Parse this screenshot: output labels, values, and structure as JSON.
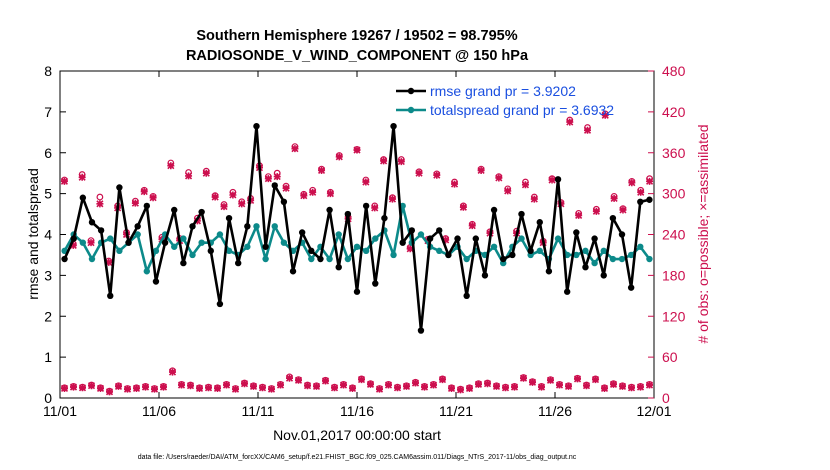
{
  "chart_data": {
    "type": "line",
    "title_line1": "Southern Hemisphere 19267 / 19502 = 98.795%",
    "title_line2": "RADIOSONDE_V_WIND_COMPONENT @ 150 hPa",
    "xlabel": "Nov.01,2017 00:00:00 start",
    "ylabel": "rmse and totalspread",
    "ylabel_right": "# of obs: o=possible; ×=assimilated",
    "x_tick_labels": [
      "11/01",
      "11/06",
      "11/11",
      "11/16",
      "11/21",
      "11/26",
      "12/01"
    ],
    "x_tick_days": [
      0,
      5,
      10,
      15,
      20,
      25,
      30
    ],
    "xlim": [
      0,
      30
    ],
    "ylim": [
      0,
      8
    ],
    "y_ticks": [
      0,
      1,
      2,
      3,
      4,
      5,
      6,
      7,
      8
    ],
    "ylim_right": [
      0,
      480
    ],
    "y_ticks_right": [
      0,
      60,
      120,
      180,
      240,
      300,
      360,
      420,
      480
    ],
    "legend_location": "top-right",
    "footnote": "data file: /Users/raeder/DAI/ATM_forcXX/CAM6_setup/f.e21.FHIST_BGC.f09_025.CAM6assim.011/Diags_NTrS_2017-11/obs_diag_output.nc",
    "colors": {
      "rmse": "#000000",
      "spread": "#0c8a8a",
      "obs": "#cc0f4e"
    },
    "series": [
      {
        "name": "rmse",
        "legend": "rmse grand pr = 3.9202",
        "values": [
          3.4,
          3.9,
          4.9,
          4.3,
          4.1,
          2.5,
          5.15,
          3.8,
          4.2,
          4.7,
          2.85,
          3.8,
          4.6,
          3.3,
          4.2,
          4.55,
          3.6,
          2.3,
          4.4,
          3.3,
          4.2,
          6.65,
          3.7,
          5.2,
          4.8,
          3.1,
          4.05,
          3.6,
          3.4,
          4.6,
          3.2,
          4.5,
          2.6,
          4.7,
          2.8,
          4.4,
          6.65,
          3.8,
          4.1,
          1.65,
          3.9,
          4.1,
          3.5,
          3.9,
          2.5,
          3.9,
          3.0,
          4.6,
          3.4,
          3.5,
          4.5,
          3.6,
          4.3,
          3.1,
          5.35,
          2.6,
          4.05,
          3.2,
          3.9,
          3.0,
          4.4,
          4.0,
          2.7,
          4.8,
          4.85
        ],
        "markers": "filled circles"
      },
      {
        "name": "totalspread",
        "legend": "totalspread grand pr = 3.6932",
        "values": [
          3.6,
          4.0,
          3.8,
          3.4,
          3.8,
          3.9,
          3.6,
          3.8,
          4.0,
          3.1,
          3.6,
          4.0,
          3.7,
          3.9,
          3.5,
          3.8,
          3.8,
          4.0,
          3.6,
          3.5,
          3.7,
          4.2,
          3.4,
          4.2,
          3.8,
          3.6,
          3.8,
          3.4,
          3.7,
          3.4,
          4.0,
          3.4,
          3.7,
          3.6,
          3.9,
          4.1,
          3.5,
          4.7,
          3.8,
          4.0,
          3.7,
          3.6,
          3.5,
          3.7,
          3.4,
          3.6,
          3.5,
          3.7,
          3.3,
          3.7,
          3.9,
          3.5,
          3.6,
          3.4,
          3.9,
          3.5,
          3.5,
          3.6,
          3.3,
          3.6,
          3.4,
          3.4,
          3.5,
          3.7,
          3.4
        ],
        "markers": "filled circles"
      },
      {
        "name": "possible",
        "axis": "right",
        "marker": "o",
        "values": [
          320,
          226,
          328,
          231,
          295,
          201,
          282,
          243,
          289,
          305,
          296,
          236,
          345,
          234,
          331,
          264,
          333,
          297,
          284,
          302,
          288,
          293,
          341,
          325,
          330,
          311,
          369,
          299,
          305,
          336,
          302,
          356,
          265,
          365,
          320,
          282,
          350,
          294,
          350,
          221,
          332,
          233,
          329,
          234,
          317,
          282,
          255,
          336,
          244,
          325,
          307,
          245,
          317,
          295,
          230,
          322,
          287,
          408,
          271,
          397,
          277,
          417,
          296,
          278,
          318,
          305,
          322
        ]
      },
      {
        "name": "assimilated",
        "axis": "right",
        "marker": "x",
        "values": [
          318,
          224,
          324,
          228,
          285,
          199,
          279,
          240,
          286,
          303,
          294,
          233,
          341,
          231,
          326,
          260,
          330,
          295,
          281,
          298,
          285,
          290,
          338,
          322,
          325,
          308,
          366,
          297,
          302,
          334,
          300,
          354,
          263,
          364,
          317,
          279,
          348,
          292,
          347,
          219,
          330,
          231,
          327,
          232,
          314,
          280,
          253,
          334,
          242,
          323,
          304,
          242,
          313,
          292,
          228,
          320,
          285,
          405,
          268,
          393,
          274,
          415,
          293,
          276,
          316,
          302,
          318
        ]
      },
      {
        "name": "possible-low",
        "axis": "right",
        "marker": "o",
        "values": [
          15,
          17,
          16,
          19,
          15,
          10,
          18,
          14,
          15,
          17,
          14,
          17,
          40,
          20,
          19,
          15,
          16,
          15,
          20,
          14,
          22,
          18,
          16,
          14,
          20,
          31,
          27,
          19,
          18,
          26,
          16,
          20,
          15,
          28,
          21,
          14,
          20,
          16,
          18,
          23,
          17,
          20,
          28,
          15,
          13,
          15,
          21,
          22,
          18,
          16,
          17,
          30,
          24,
          17,
          27,
          20,
          18,
          29,
          19,
          28,
          15,
          21,
          18,
          16,
          17,
          20
        ]
      },
      {
        "name": "assimilated-low",
        "axis": "right",
        "marker": "x",
        "values": [
          14,
          16,
          15,
          18,
          14,
          9,
          17,
          13,
          14,
          16,
          13,
          16,
          38,
          19,
          18,
          14,
          15,
          14,
          19,
          13,
          21,
          17,
          15,
          13,
          19,
          29,
          26,
          18,
          17,
          25,
          15,
          19,
          14,
          27,
          20,
          13,
          19,
          15,
          17,
          22,
          16,
          19,
          27,
          14,
          12,
          14,
          20,
          21,
          17,
          15,
          16,
          29,
          23,
          16,
          26,
          19,
          17,
          28,
          18,
          27,
          14,
          20,
          17,
          15,
          16,
          19
        ]
      }
    ]
  }
}
